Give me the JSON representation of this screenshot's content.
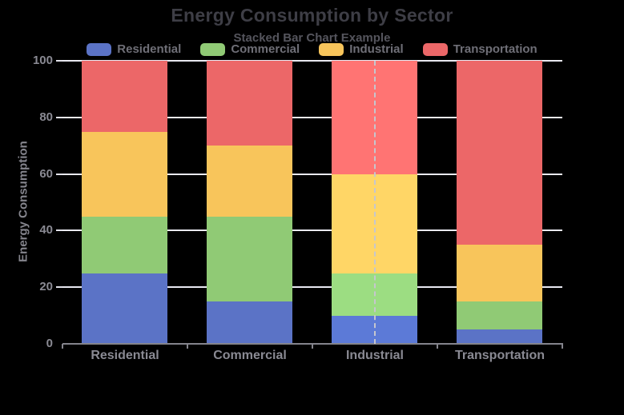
{
  "title": "Energy Consumption by Sector",
  "subtitle": "Stacked Bar Chart Example",
  "palette": {
    "background": "#000000",
    "title_text": "#3e3e46",
    "subtitle_text": "#55555d",
    "legend_text": "#6f6f77",
    "axis_text": "#8a8a93",
    "gridline": "#e9e9f1",
    "axis_line": "#84848c",
    "hover_line": "#c6c6ce"
  },
  "chart_data": {
    "type": "bar",
    "stacked": true,
    "title": "Energy Consumption by Sector",
    "subtitle": "Stacked Bar Chart Example",
    "xlabel": "",
    "ylabel": "Energy Consumption",
    "categories": [
      "Residential",
      "Commercial",
      "Industrial",
      "Transportation"
    ],
    "series": [
      {
        "name": "Residential",
        "color": "#5b73c6",
        "highlight_color": "#5c7ad7",
        "values": [
          25,
          15,
          10,
          5
        ]
      },
      {
        "name": "Commercial",
        "color": "#90ca75",
        "highlight_color": "#9cdd82",
        "values": [
          20,
          30,
          15,
          10
        ]
      },
      {
        "name": "Industrial",
        "color": "#f8c55b",
        "highlight_color": "#ffd666",
        "values": [
          30,
          25,
          35,
          20
        ]
      },
      {
        "name": "Transportation",
        "color": "#ec6768",
        "highlight_color": "#ff7473",
        "values": [
          25,
          30,
          40,
          65
        ]
      }
    ],
    "stack_totals": [
      100,
      100,
      100,
      100
    ],
    "ylim": [
      0,
      100
    ],
    "yticks": [
      0,
      20,
      40,
      60,
      80,
      100
    ],
    "grid": true,
    "legend_position": "top",
    "highlighted_category": "Industrial",
    "hover_line_style": "dashed"
  }
}
